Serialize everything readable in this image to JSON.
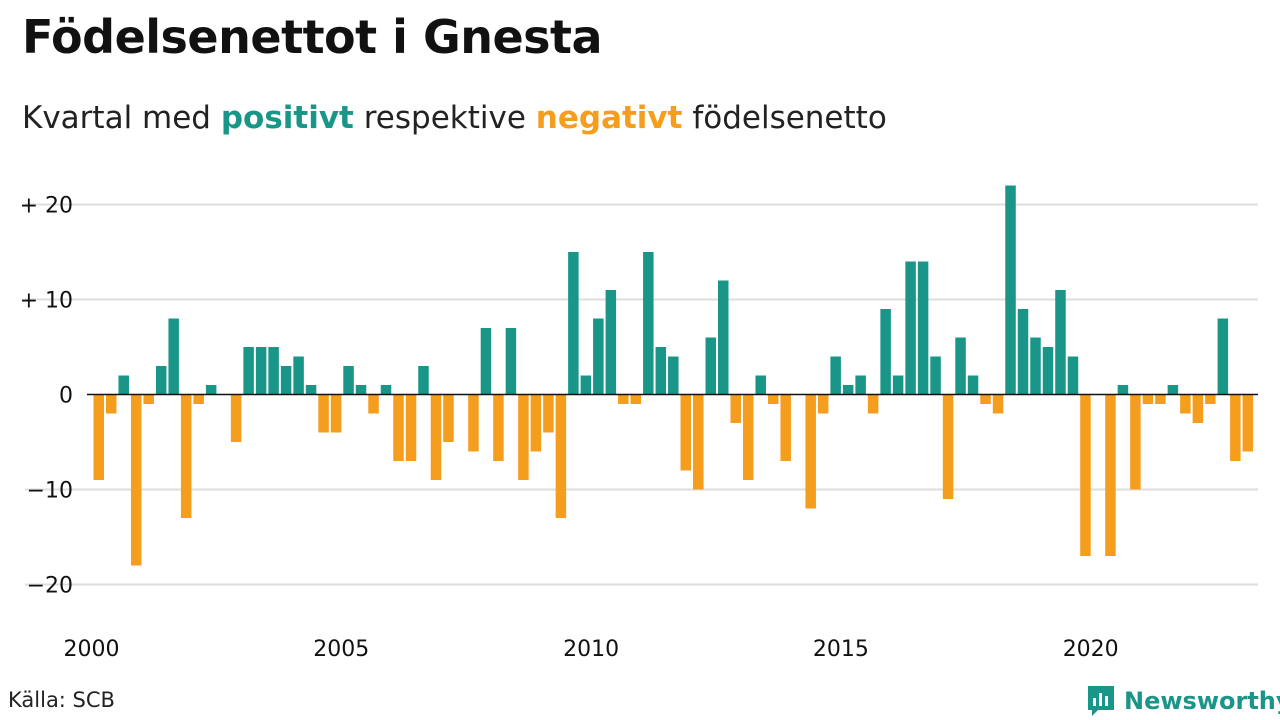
{
  "title": "Födelsenettot i Gnesta",
  "subtitle": {
    "prefix": "Kvartal med ",
    "positive": "positivt",
    "middle": " respektive ",
    "negative": "negativt",
    "suffix": " födelsenetto"
  },
  "source": "Källa: SCB",
  "brand": {
    "name": "Newsworthy",
    "icon": "newsworthy-logo-icon"
  },
  "colors": {
    "positive": "#1a9688",
    "negative": "#f59e1e",
    "grid": "#dddddd",
    "zero_line": "#111111"
  },
  "chart_data": {
    "type": "bar",
    "title": "Födelsenettot i Gnesta",
    "subtitle": "Kvartal med positivt respektive negativt födelsenetto",
    "x_start": "2000 Q1",
    "frequency": "quarterly",
    "x_ticks": [
      "2000",
      "2005",
      "2010",
      "2015",
      "2020"
    ],
    "y_ticks": [
      {
        "value": 20,
        "label": "+ 20"
      },
      {
        "value": 10,
        "label": "+ 10"
      },
      {
        "value": 0,
        "label": "0"
      },
      {
        "value": -10,
        "label": "−10"
      },
      {
        "value": -20,
        "label": "−20"
      }
    ],
    "ylim": [
      -23,
      23
    ],
    "grid": true,
    "values": [
      -9,
      -2,
      2,
      -18,
      -1,
      3,
      8,
      -13,
      -1,
      1,
      0,
      -5,
      5,
      5,
      5,
      3,
      4,
      1,
      -4,
      -4,
      3,
      1,
      -2,
      1,
      -7,
      -7,
      3,
      -9,
      -5,
      0,
      -6,
      7,
      -7,
      7,
      -9,
      -6,
      -4,
      -13,
      15,
      2,
      8,
      11,
      -1,
      -1,
      15,
      5,
      4,
      -8,
      -10,
      6,
      12,
      -3,
      -9,
      2,
      -1,
      -7,
      0,
      -12,
      -2,
      4,
      1,
      2,
      -2,
      9,
      2,
      14,
      14,
      4,
      -11,
      6,
      2,
      -1,
      -2,
      22,
      9,
      6,
      5,
      11,
      4,
      -17,
      0,
      -17,
      1,
      -10,
      -1,
      -1,
      1,
      -2,
      -3,
      -1,
      8,
      -7,
      -6
    ]
  }
}
